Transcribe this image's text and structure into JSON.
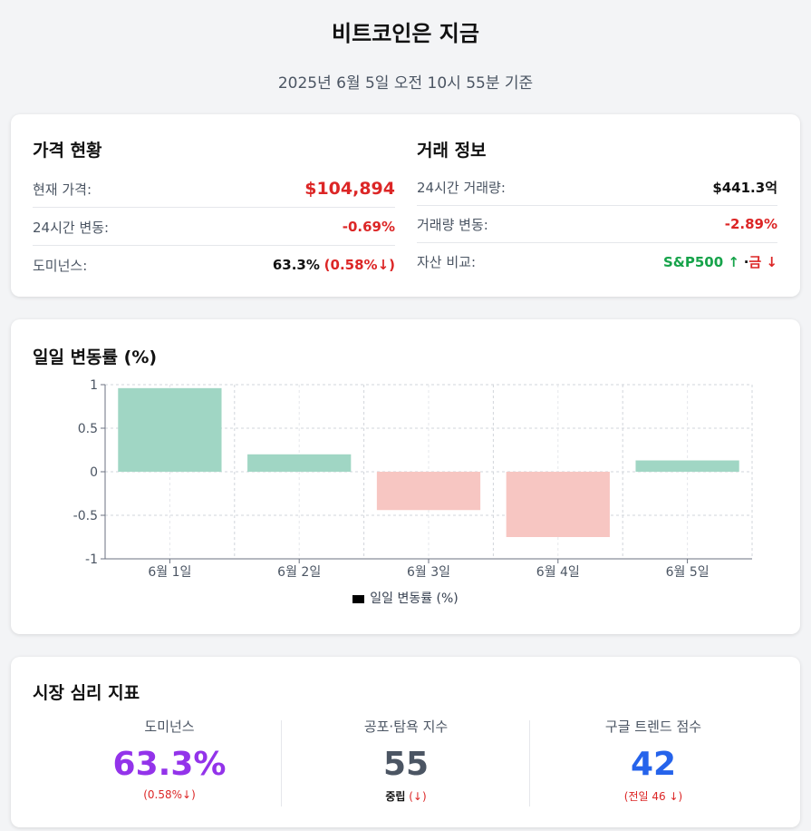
{
  "header": {
    "title": "비트코인은 지금",
    "subtitle": "2025년 6월 5일 오전 10시 55분 기준"
  },
  "price_status": {
    "heading": "가격 현황",
    "rows": [
      {
        "label": "현재 가격:",
        "value": "$104,894"
      },
      {
        "label": "24시간 변동:",
        "value": "-0.69%"
      },
      {
        "label": "도미넌스:",
        "value": "63.3%",
        "extra": "(0.58%↓)"
      }
    ]
  },
  "trade_info": {
    "heading": "거래 정보",
    "rows": [
      {
        "label": "24시간 거래량:",
        "value": "$441.3억"
      },
      {
        "label": "거래량 변동:",
        "value": "-2.89%"
      },
      {
        "label": "자산 비교:",
        "value_a": "S&P500 ↑",
        "sep": "·",
        "value_b": "금 ↓"
      }
    ]
  },
  "chart_card": {
    "heading": "일일 변동률 (%)"
  },
  "chart_data": {
    "type": "bar",
    "categories": [
      "6월 1일",
      "6월 2일",
      "6월 3일",
      "6월 4일",
      "6월 5일"
    ],
    "series": [
      {
        "name": "일일 변동률 (%)",
        "values": [
          0.96,
          0.2,
          -0.44,
          -0.75,
          0.13
        ]
      }
    ],
    "ylim": [
      -1,
      1
    ],
    "yticks": [
      "1",
      "0.5",
      "0",
      "-0.5",
      "-1"
    ],
    "grid": true,
    "legend": "bottom",
    "colors": {
      "positive": "#a0d6c4",
      "negative": "#f7c6c2"
    }
  },
  "sentiment": {
    "heading": "시장 심리 지표",
    "items": [
      {
        "label": "도미넌스",
        "value": "63.3%",
        "sub": "(0.58%↓)",
        "color": "#9333ea"
      },
      {
        "label": "공포·탐욕 지수",
        "value": "55",
        "sub_a": "중립",
        "sub_b": "(↓)",
        "color": "#4b5563"
      },
      {
        "label": "구글 트렌드 점수",
        "value": "42",
        "sub": "(전일 46 ↓)",
        "color": "#2563eb"
      }
    ]
  }
}
